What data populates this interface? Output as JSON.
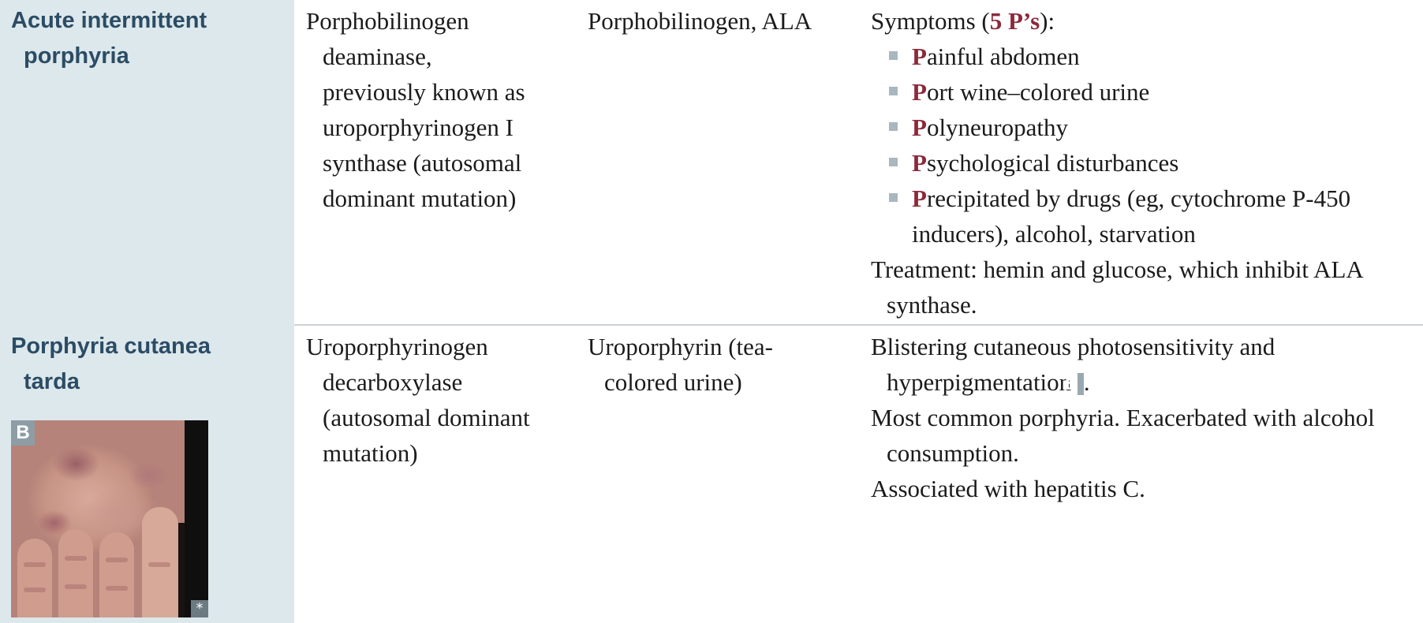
{
  "rows": [
    {
      "name_lines": [
        "Acute intermittent",
        "porphyria"
      ],
      "enzyme_lines": [
        "Porphobilinogen",
        "deaminase,",
        "previously known as",
        "uroporphyrinogen I",
        "synthase (autosomal",
        "dominant mutation)"
      ],
      "accumulated": "Porphobilinogen, ALA",
      "symptoms_prefix": "Symptoms (",
      "symptoms_accent": "5 P’s",
      "symptoms_suffix": "):",
      "bullets": [
        {
          "letter": "P",
          "rest": "ainful abdomen"
        },
        {
          "letter": "P",
          "rest": "ort wine–colored urine"
        },
        {
          "letter": "P",
          "rest": "olyneuropathy"
        },
        {
          "letter": "P",
          "rest": "sychological disturbances"
        },
        {
          "letter": "P",
          "rest": "recipitated by drugs (eg, cytochrome P-450 inducers), alcohol, starvation"
        }
      ],
      "treatment": "Treatment: hemin and glucose, which inhibit ALA synthase."
    },
    {
      "name_lines": [
        "Porphyria cutanea",
        "tarda"
      ],
      "enzyme_lines": [
        "Uroporphyrinogen",
        "decarboxylase",
        "(autosomal dominant",
        "mutation)"
      ],
      "accumulated_lines": [
        "Uroporphyrin (tea-",
        "colored urine)"
      ],
      "pres_1_text": "Blistering cutaneous photosensitivity and hyperpigmentation ",
      "pres_1_ref": "B",
      "pres_1_end": ".",
      "pres_2": "Most common porphyria. Exacerbated with alcohol consumption.",
      "pres_3": "Associated with hepatitis C.",
      "image_label": "B",
      "image_credit": "*"
    }
  ],
  "colors": {
    "left_band": "#dce8ec",
    "name_text": "#2c4c64",
    "accent": "#8a2a3b",
    "bullet": "#a9b7bf",
    "divider": "#cfd3d5"
  }
}
